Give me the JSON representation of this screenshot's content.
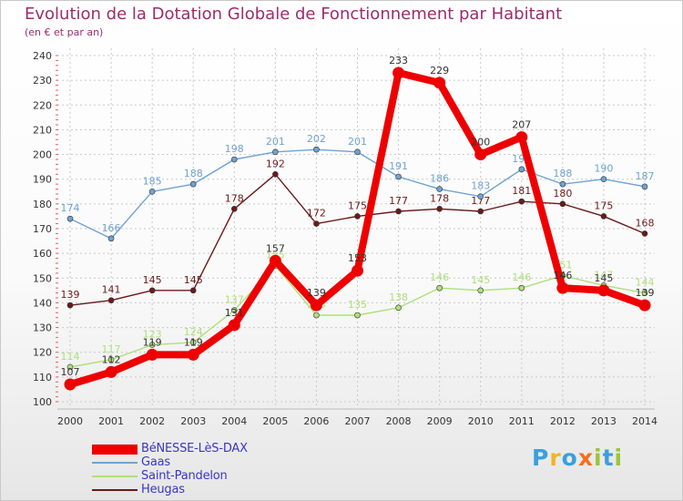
{
  "chart_data": {
    "type": "line",
    "title": "Evolution de la Dotation Globale de Fonctionnement par Habitant",
    "subtitle": "(en € et par an)",
    "x": [
      2000,
      2001,
      2002,
      2003,
      2004,
      2005,
      2006,
      2007,
      2008,
      2009,
      2010,
      2011,
      2012,
      2013,
      2014
    ],
    "x_tick_labels": [
      "2000",
      "2001",
      "2002",
      "2003",
      "2004",
      "2005",
      "2006",
      "2007",
      "2008",
      "2009",
      "2010",
      "2011",
      "2012",
      "2013",
      "2014"
    ],
    "y_tick_labels": [
      "100",
      "110",
      "120",
      "130",
      "140",
      "150",
      "160",
      "170",
      "180",
      "190",
      "200",
      "210",
      "220",
      "230",
      "240"
    ],
    "ylim": [
      100,
      240
    ],
    "grid": "dotted",
    "legend_position": "bottom-left",
    "series": [
      {
        "name": "Heugas",
        "color": "#6b1a1a",
        "values": [
          139,
          141,
          145,
          145,
          178,
          192,
          172,
          175,
          177,
          178,
          177,
          181,
          180,
          175,
          168
        ]
      },
      {
        "name": "Saint-Pandelon",
        "color": "#aee07a",
        "values": [
          114,
          117,
          123,
          124,
          137,
          155,
          135,
          135,
          138,
          146,
          145,
          146,
          151,
          147,
          144
        ]
      },
      {
        "name": "Gaas",
        "color": "#6fa3d1",
        "values": [
          174,
          166,
          185,
          188,
          198,
          201,
          202,
          201,
          191,
          186,
          183,
          194,
          188,
          190,
          187
        ]
      },
      {
        "name": "BéNESSE-LèS-DAX",
        "color": "#ee0000",
        "values": [
          107,
          112,
          119,
          119,
          131,
          157,
          139,
          153,
          233,
          229,
          200,
          207,
          146,
          145,
          139
        ]
      }
    ]
  },
  "legend": {
    "items": [
      {
        "label": "BéNESSE-LèS-DAX",
        "color": "#ee0000"
      },
      {
        "label": "Gaas",
        "color": "#6fa3d1"
      },
      {
        "label": "Saint-Pandelon",
        "color": "#aee07a"
      },
      {
        "label": "Heugas",
        "color": "#6b1a1a"
      }
    ]
  },
  "logo": {
    "text": "Proxiti",
    "colors": [
      "#3aa0dc",
      "#f0b429",
      "#3aa0dc",
      "#f36f21",
      "#9bc53d",
      "#3aa0dc",
      "#9bc53d"
    ]
  }
}
